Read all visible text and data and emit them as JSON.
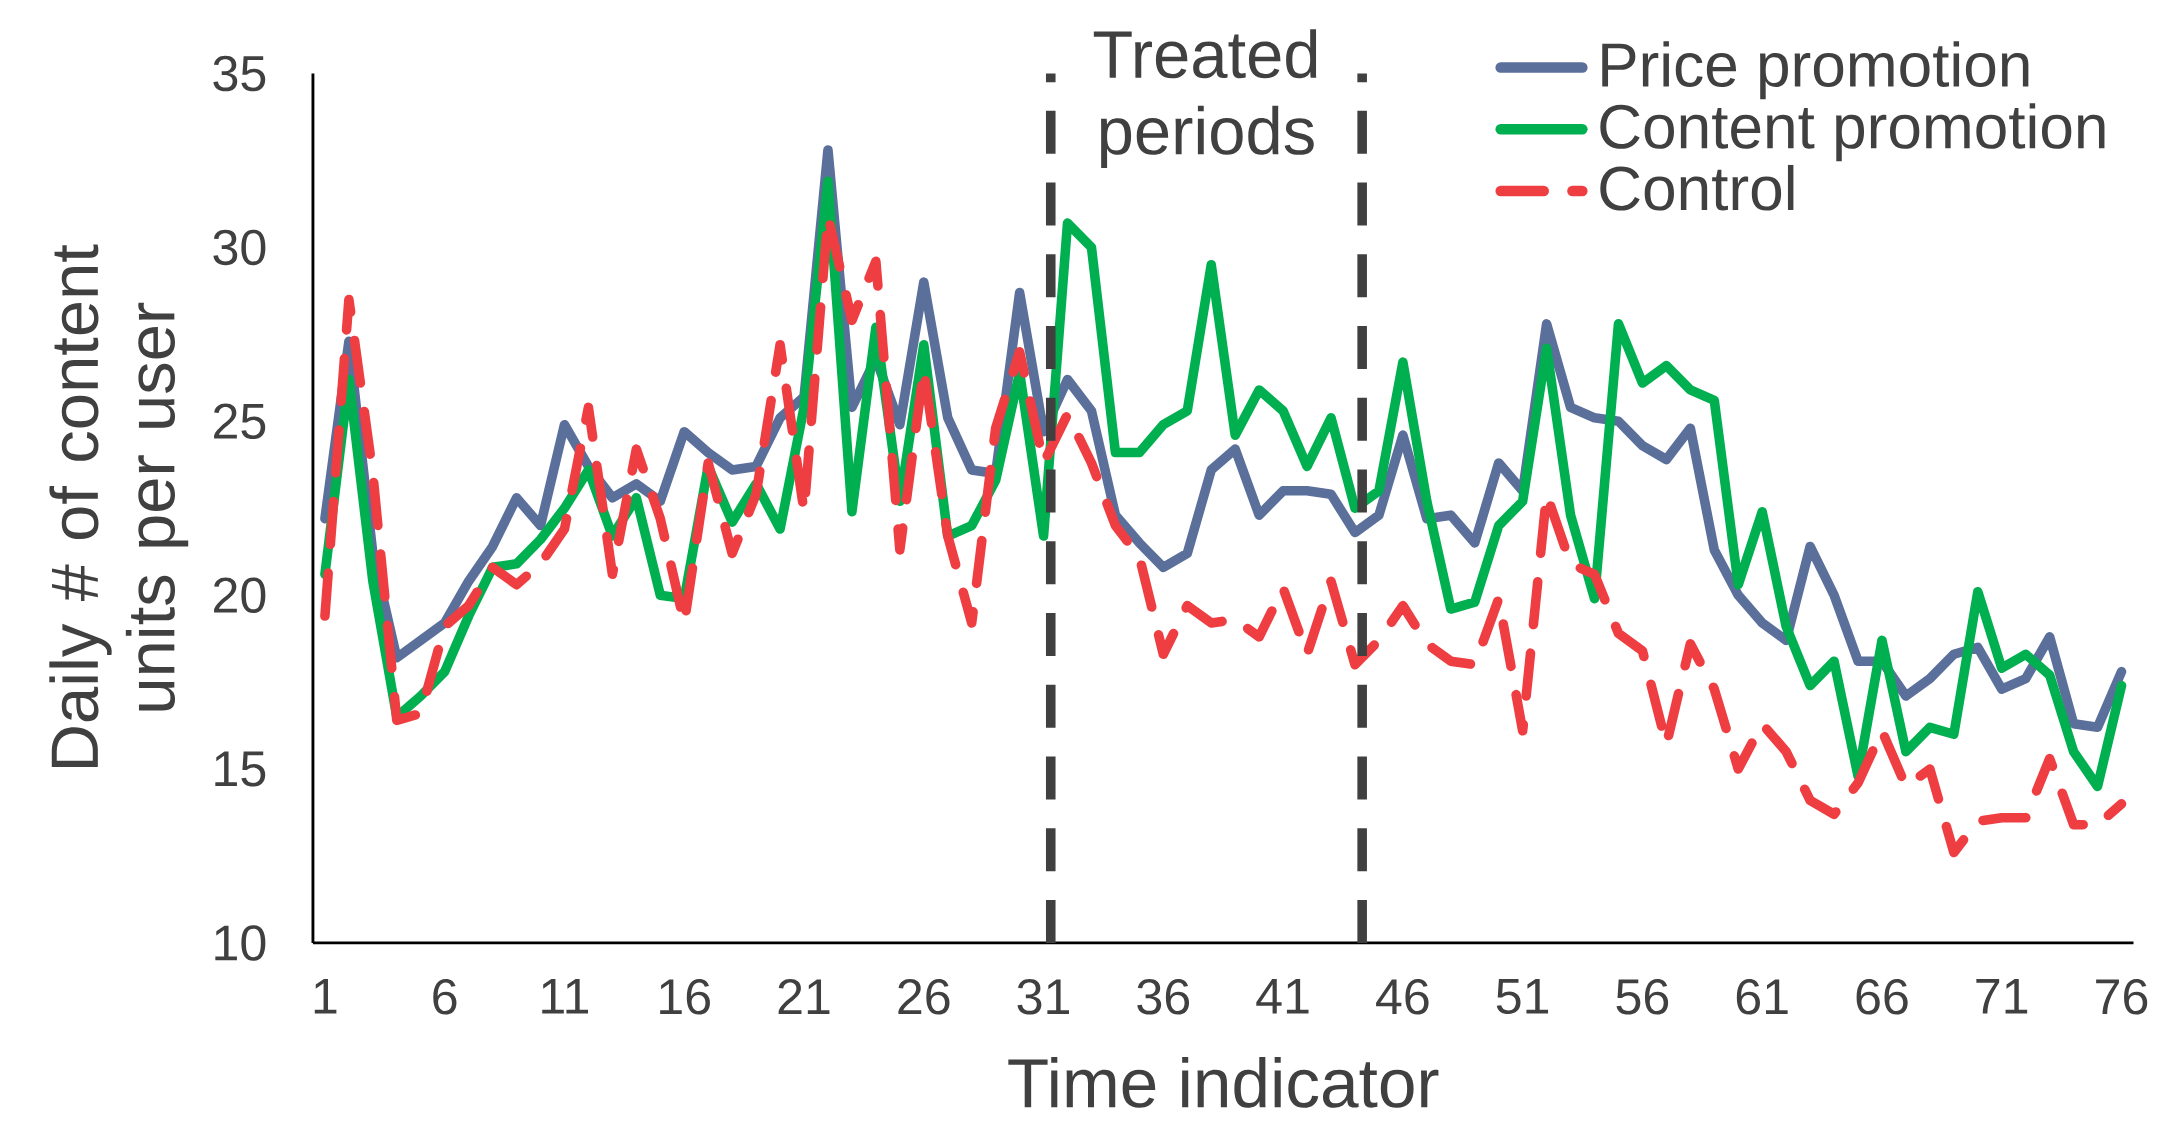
{
  "chart_data": {
    "type": "line",
    "xlabel": "Time indicator",
    "ylabel": "Daily # of content units per user",
    "x": [
      1,
      2,
      3,
      4,
      5,
      6,
      7,
      8,
      9,
      10,
      11,
      12,
      13,
      14,
      15,
      16,
      17,
      18,
      19,
      20,
      21,
      22,
      23,
      24,
      25,
      26,
      27,
      28,
      29,
      30,
      31,
      32,
      33,
      34,
      35,
      36,
      37,
      38,
      39,
      40,
      41,
      42,
      43,
      44,
      45,
      46,
      47,
      48,
      49,
      50,
      51,
      52,
      53,
      54,
      55,
      56,
      57,
      58,
      59,
      60,
      61,
      62,
      63,
      64,
      65,
      66,
      67,
      68,
      69,
      70,
      71,
      72,
      73,
      74,
      75,
      76
    ],
    "series": [
      {
        "name": "Price promotion",
        "color": "#5b6f9b",
        "line_style": "solid",
        "values": [
          22.2,
          27.3,
          21.2,
          18.2,
          18.7,
          19.2,
          20.4,
          21.4,
          22.8,
          22.0,
          24.9,
          23.7,
          22.8,
          23.2,
          22.7,
          24.7,
          24.1,
          23.6,
          23.7,
          25.1,
          25.7,
          32.8,
          25.4,
          26.8,
          24.9,
          29.0,
          25.1,
          23.6,
          23.5,
          28.7,
          24.7,
          26.2,
          25.3,
          22.3,
          21.5,
          20.8,
          21.2,
          23.6,
          24.2,
          22.3,
          23.0,
          23.0,
          22.9,
          21.8,
          22.3,
          24.6,
          22.2,
          22.3,
          21.5,
          23.8,
          23.0,
          27.8,
          25.4,
          25.1,
          25.0,
          24.3,
          23.9,
          24.8,
          21.3,
          20.0,
          19.2,
          18.7,
          21.4,
          20.0,
          18.1,
          18.1,
          17.1,
          17.6,
          18.3,
          18.5,
          17.3,
          17.6,
          18.8,
          16.3,
          16.2,
          17.8
        ]
      },
      {
        "name": "Content promotion",
        "color": "#00b050",
        "line_style": "solid",
        "values": [
          20.6,
          26.2,
          20.4,
          16.5,
          17.1,
          17.8,
          19.4,
          20.8,
          20.9,
          21.6,
          22.5,
          23.6,
          21.7,
          22.8,
          20.0,
          19.9,
          23.7,
          22.1,
          23.2,
          21.9,
          25.4,
          31.9,
          22.4,
          27.7,
          22.7,
          27.2,
          21.7,
          22.0,
          23.3,
          26.4,
          21.7,
          30.7,
          30.0,
          24.1,
          24.1,
          24.9,
          25.3,
          29.5,
          24.6,
          25.9,
          25.3,
          23.7,
          25.1,
          22.5,
          23.0,
          26.7,
          22.7,
          19.6,
          19.8,
          22.0,
          22.7,
          27.1,
          22.3,
          19.9,
          27.8,
          26.1,
          26.6,
          25.9,
          25.6,
          20.3,
          22.4,
          19.1,
          17.4,
          18.1,
          14.8,
          18.7,
          15.5,
          16.2,
          16.0,
          20.1,
          17.9,
          18.3,
          17.7,
          15.5,
          14.5,
          17.4
        ]
      },
      {
        "name": "Control",
        "color": "#ef3e42",
        "line_style": "dashed",
        "values": [
          19.4,
          28.5,
          23.5,
          16.4,
          16.6,
          19.1,
          19.7,
          20.8,
          20.3,
          20.9,
          21.9,
          25.4,
          20.6,
          24.2,
          22.2,
          19.2,
          23.8,
          21.2,
          22.9,
          27.2,
          22.4,
          30.9,
          27.9,
          29.6,
          21.3,
          26.5,
          21.7,
          19.2,
          24.8,
          27.0,
          23.8,
          25.2,
          23.8,
          22.0,
          21.1,
          18.3,
          19.7,
          19.2,
          19.3,
          18.8,
          20.2,
          18.3,
          20.4,
          18.0,
          18.7,
          19.7,
          18.6,
          18.1,
          18.0,
          19.9,
          16.1,
          22.9,
          20.9,
          20.6,
          18.9,
          18.4,
          15.7,
          18.6,
          17.3,
          15.0,
          16.3,
          15.5,
          14.1,
          13.7,
          14.6,
          16.1,
          14.5,
          15.0,
          12.6,
          13.5,
          13.6,
          13.6,
          15.3,
          13.4,
          13.4,
          14.0
        ]
      }
    ],
    "xlim": [
      0.5,
      76.5
    ],
    "xticks": [
      1,
      6,
      11,
      16,
      21,
      26,
      31,
      36,
      41,
      46,
      51,
      56,
      61,
      66,
      71,
      76
    ],
    "ylim": [
      10,
      35
    ],
    "yticks": [
      10,
      15,
      20,
      25,
      30,
      35
    ],
    "ref_lines": [
      {
        "axis": "x",
        "value": 31.3,
        "color": "#404040",
        "line_style": "dashed"
      },
      {
        "axis": "x",
        "value": 44.3,
        "color": "#404040",
        "line_style": "dashed"
      }
    ],
    "annotations": [
      "Treated periods"
    ],
    "legend": "top right",
    "grid": false,
    "marker": "none"
  }
}
